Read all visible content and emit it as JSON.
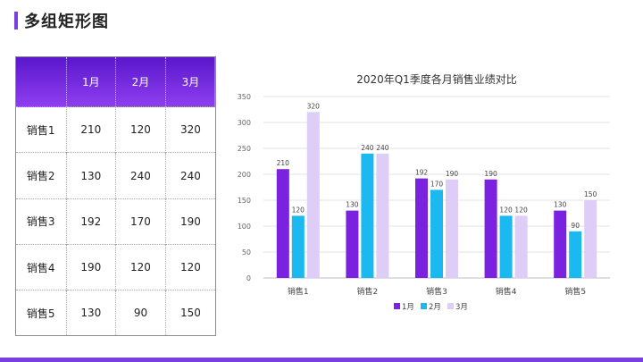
{
  "page": {
    "title": "多组矩形图"
  },
  "table": {
    "headers": [
      "",
      "1月",
      "2月",
      "3月"
    ],
    "rows": [
      [
        "销售1",
        "210",
        "120",
        "320"
      ],
      [
        "销售2",
        "130",
        "240",
        "240"
      ],
      [
        "销售3",
        "192",
        "170",
        "190"
      ],
      [
        "销售4",
        "190",
        "120",
        "120"
      ],
      [
        "销售5",
        "130",
        "90",
        "150"
      ]
    ]
  },
  "colors": {
    "accent": "#7a3fe0",
    "series": [
      "#7a22e0",
      "#1cb8f0",
      "#decdf6"
    ]
  },
  "chart_data": {
    "type": "bar",
    "title": "2020年Q1季度各月销售业绩对比",
    "categories": [
      "销售1",
      "销售2",
      "销售3",
      "销售4",
      "销售5"
    ],
    "series": [
      {
        "name": "1月",
        "values": [
          210,
          130,
          192,
          190,
          130
        ]
      },
      {
        "name": "2月",
        "values": [
          120,
          240,
          170,
          120,
          90
        ]
      },
      {
        "name": "3月",
        "values": [
          320,
          240,
          190,
          120,
          150
        ]
      }
    ],
    "ylim": [
      0,
      350
    ],
    "yticks": [
      0,
      50,
      100,
      150,
      200,
      250,
      300,
      350
    ],
    "grid": true,
    "legend": "bottom"
  }
}
